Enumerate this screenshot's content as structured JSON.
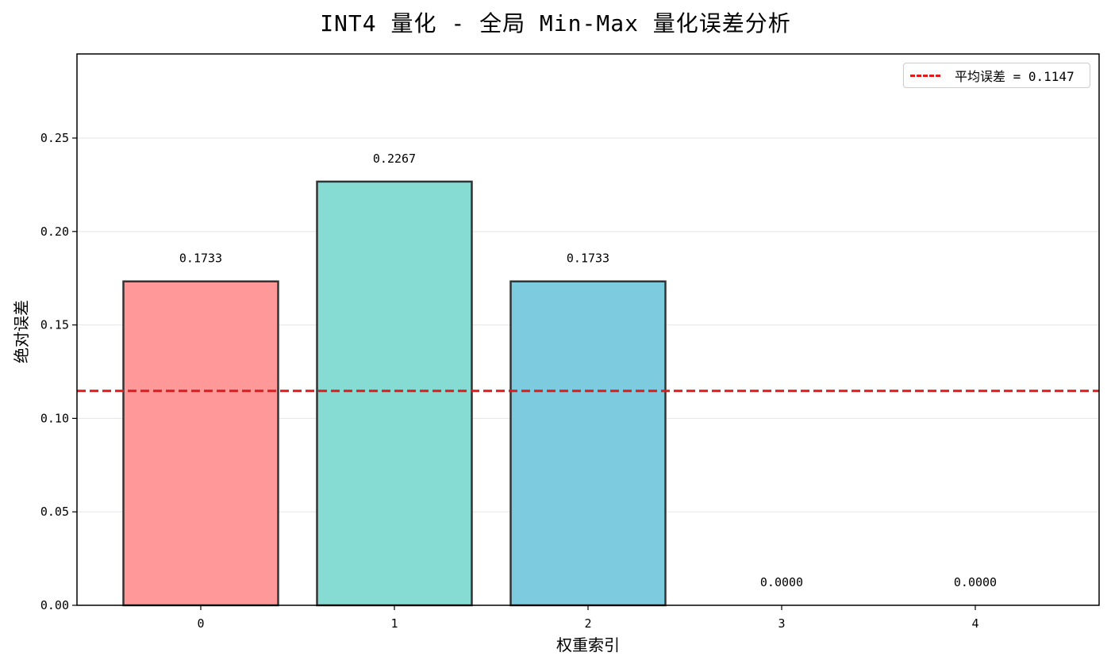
{
  "chart_data": {
    "type": "bar",
    "title": "INT4 量化 - 全局 Min-Max 量化误差分析",
    "xlabel": "权重索引",
    "ylabel": "绝对误差",
    "categories": [
      "0",
      "1",
      "2",
      "3",
      "4"
    ],
    "values": [
      0.1733,
      0.2267,
      0.1733,
      0.0,
      0.0
    ],
    "value_labels": [
      "0.1733",
      "0.2267",
      "0.1733",
      "0.0000",
      "0.0000"
    ],
    "bar_colors": [
      "#ff9999",
      "#86dcd3",
      "#7ccbdf",
      "#9ad4f0",
      "#a8e6c8"
    ],
    "bar_edge_color": "#333333",
    "ylim": [
      0,
      0.295
    ],
    "yticks": [
      0.0,
      0.05,
      0.1,
      0.15,
      0.2,
      0.25
    ],
    "ytick_labels": [
      "0.00",
      "0.05",
      "0.10",
      "0.15",
      "0.20",
      "0.25"
    ],
    "grid": {
      "axis": "y",
      "on": true,
      "color": "#e5e5e5"
    },
    "reference_lines": [
      {
        "type": "hline",
        "y": 0.1147,
        "style": "dashed",
        "color": "#e31a1c",
        "label": "平均误差 = 0.1147"
      }
    ],
    "legend": {
      "position": "upper right",
      "entries": [
        "平均误差 = 0.1147"
      ]
    }
  }
}
